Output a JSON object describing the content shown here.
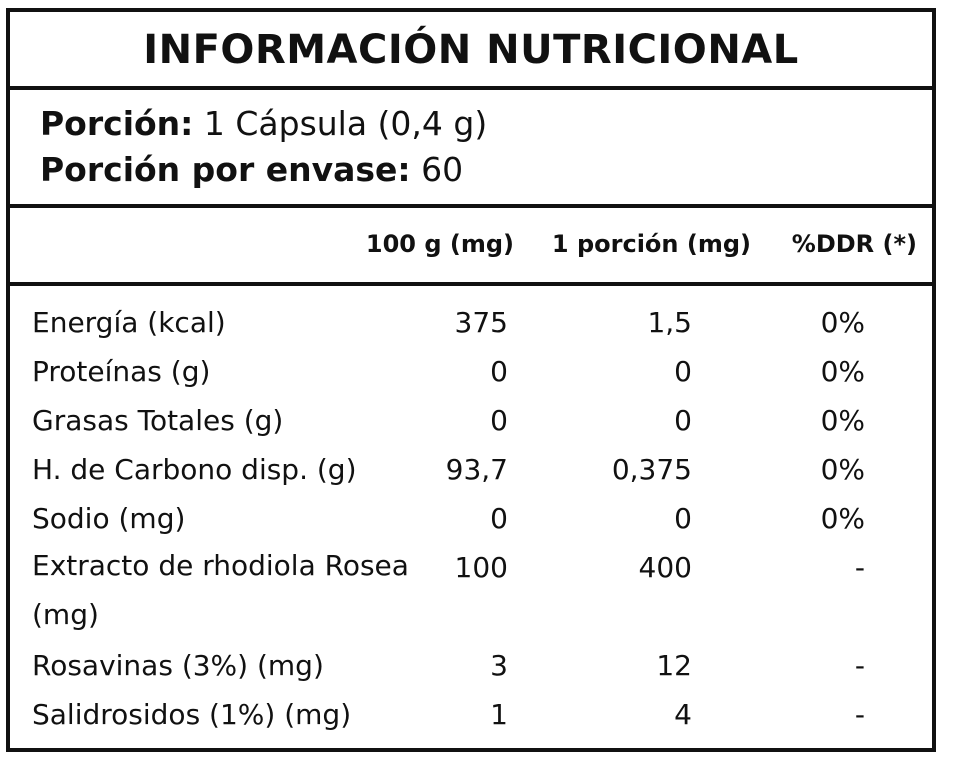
{
  "title": "INFORMACIÓN NUTRICIONAL",
  "serving": {
    "portion_label": "Porción:",
    "portion_value": "1 Cápsula (0,4 g)",
    "per_container_label": "Porción por envase:",
    "per_container_value": "60"
  },
  "columns": [
    "100 g (mg)",
    "1 porción (mg)",
    "%DDR (*)"
  ],
  "rows": [
    {
      "name": "Energía (kcal)",
      "per100": "375",
      "per_portion": "1,5",
      "ddr": "0%"
    },
    {
      "name": "Proteínas (g)",
      "per100": "0",
      "per_portion": "0",
      "ddr": "0%"
    },
    {
      "name": "Grasas Totales (g)",
      "per100": "0",
      "per_portion": "0",
      "ddr": "0%"
    },
    {
      "name": "H. de Carbono disp. (g)",
      "per100": "93,7",
      "per_portion": "0,375",
      "ddr": "0%"
    },
    {
      "name": "Sodio (mg)",
      "per100": "0",
      "per_portion": "0",
      "ddr": "0%"
    },
    {
      "name": "Extracto de rhodiola Rosea (mg)",
      "per100": "100",
      "per_portion": "400",
      "ddr": "-"
    },
    {
      "name": "Rosavinas (3%) (mg)",
      "per100": "3",
      "per_portion": "12",
      "ddr": "-"
    },
    {
      "name": "Salidrosidos (1%) (mg)",
      "per100": "1",
      "per_portion": "4",
      "ddr": "-"
    }
  ]
}
